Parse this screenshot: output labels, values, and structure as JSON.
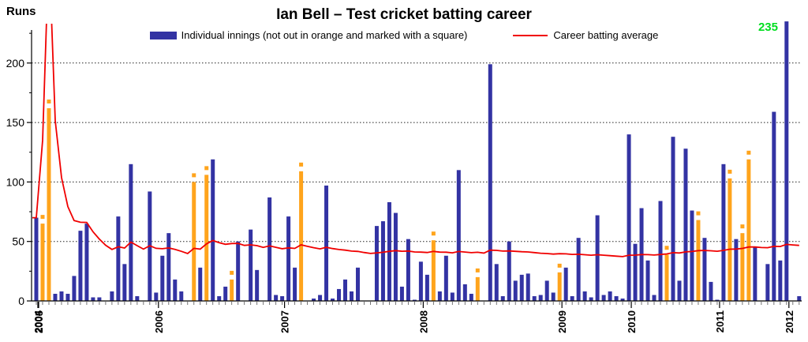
{
  "title": "Ian Bell – Test cricket batting career",
  "ylabel": "Runs",
  "legend": {
    "innings_label": "Individual innings (not out in orange and marked with a square)",
    "average_label": "Career batting average"
  },
  "annotation": {
    "text": "235",
    "color": "#00DE1F"
  },
  "colors": {
    "bar": "#3333A3",
    "not_out": "#FFA41C",
    "average_line": "#F00000",
    "grid": "#222222",
    "axis": "#000000",
    "minor_tick": "#666666"
  },
  "chart_data": {
    "type": "bar",
    "title": "Ian Bell – Test cricket batting career",
    "xlabel": "",
    "ylabel": "Runs",
    "ylim": [
      0,
      235
    ],
    "yticks": [
      0,
      50,
      100,
      150,
      200
    ],
    "y_minor_ticks": [
      25,
      75,
      125,
      175,
      225
    ],
    "grid": "horizontal-dashed",
    "legend_position": "top-center",
    "high_score": 235,
    "series": [
      {
        "name": "Individual innings (not out in orange and marked with a square)",
        "type": "bar"
      },
      {
        "name": "Career batting average",
        "type": "line",
        "note": "running average = cumulative runs / cumulative dismissals"
      }
    ],
    "innings_by_year": {
      "2004": [
        [
          70,
          0
        ]
      ],
      "2005": [
        [
          65,
          1
        ],
        [
          162,
          1
        ],
        [
          6,
          0
        ],
        [
          8,
          0
        ],
        [
          6,
          0
        ],
        [
          21,
          0
        ],
        [
          59,
          0
        ],
        [
          65,
          0
        ],
        [
          3,
          0
        ],
        [
          3,
          0
        ],
        [
          0,
          0
        ],
        [
          8,
          0
        ],
        [
          71,
          0
        ],
        [
          31,
          0
        ],
        [
          115,
          0
        ],
        [
          4,
          0
        ],
        [
          0,
          0
        ],
        [
          92,
          0
        ],
        [
          7,
          0
        ]
      ],
      "2006": [
        [
          38,
          0
        ],
        [
          57,
          0
        ],
        [
          18,
          0
        ],
        [
          8,
          0
        ],
        [
          0,
          0
        ],
        [
          100,
          1
        ],
        [
          28,
          0
        ],
        [
          106,
          1
        ],
        [
          119,
          0
        ],
        [
          4,
          0
        ],
        [
          12,
          0
        ],
        [
          18,
          1
        ],
        [
          50,
          0
        ],
        [
          0,
          0
        ],
        [
          60,
          0
        ],
        [
          26,
          0
        ],
        [
          0,
          0
        ],
        [
          87,
          0
        ],
        [
          5,
          0
        ],
        [
          4,
          0
        ]
      ],
      "2007": [
        [
          71,
          0
        ],
        [
          28,
          0
        ],
        [
          109,
          1
        ],
        [
          0,
          0
        ],
        [
          2,
          0
        ],
        [
          5,
          0
        ],
        [
          97,
          0
        ],
        [
          2,
          0
        ],
        [
          10,
          0
        ],
        [
          18,
          0
        ],
        [
          8,
          0
        ],
        [
          28,
          0
        ],
        [
          0,
          0
        ],
        [
          0,
          0
        ],
        [
          63,
          0
        ],
        [
          67,
          0
        ],
        [
          83,
          0
        ],
        [
          74,
          0
        ],
        [
          12,
          0
        ],
        [
          52,
          0
        ],
        [
          1,
          0
        ],
        [
          33,
          0
        ]
      ],
      "2008": [
        [
          22,
          0
        ],
        [
          51,
          1
        ],
        [
          8,
          0
        ],
        [
          38,
          0
        ],
        [
          7,
          0
        ],
        [
          110,
          0
        ],
        [
          14,
          0
        ],
        [
          6,
          0
        ],
        [
          20,
          1
        ],
        [
          0,
          0
        ],
        [
          199,
          0
        ],
        [
          31,
          0
        ],
        [
          4,
          0
        ],
        [
          50,
          0
        ],
        [
          17,
          0
        ],
        [
          22,
          0
        ],
        [
          23,
          0
        ],
        [
          4,
          0
        ],
        [
          5,
          0
        ],
        [
          17,
          0
        ],
        [
          7,
          0
        ],
        [
          24,
          1
        ]
      ],
      "2009": [
        [
          28,
          0
        ],
        [
          4,
          0
        ],
        [
          53,
          0
        ],
        [
          8,
          0
        ],
        [
          3,
          0
        ],
        [
          72,
          0
        ],
        [
          5,
          0
        ],
        [
          8,
          0
        ],
        [
          4,
          0
        ],
        [
          2,
          0
        ],
        [
          140,
          0
        ]
      ],
      "2010": [
        [
          48,
          0
        ],
        [
          78,
          0
        ],
        [
          34,
          0
        ],
        [
          5,
          0
        ],
        [
          84,
          0
        ],
        [
          39,
          1
        ],
        [
          138,
          0
        ],
        [
          17,
          0
        ],
        [
          128,
          0
        ],
        [
          76,
          0
        ],
        [
          68,
          1
        ],
        [
          53,
          0
        ],
        [
          16,
          0
        ],
        [
          1,
          0
        ]
      ],
      "2011": [
        [
          115,
          0
        ],
        [
          103,
          1
        ],
        [
          52,
          0
        ],
        [
          57,
          1
        ],
        [
          119,
          1
        ],
        [
          45,
          0
        ],
        [
          0,
          0
        ],
        [
          31,
          0
        ],
        [
          159,
          0
        ],
        [
          34,
          0
        ],
        [
          235,
          0
        ]
      ],
      "2012": [
        [
          0,
          0
        ],
        [
          4,
          0
        ]
      ]
    }
  }
}
